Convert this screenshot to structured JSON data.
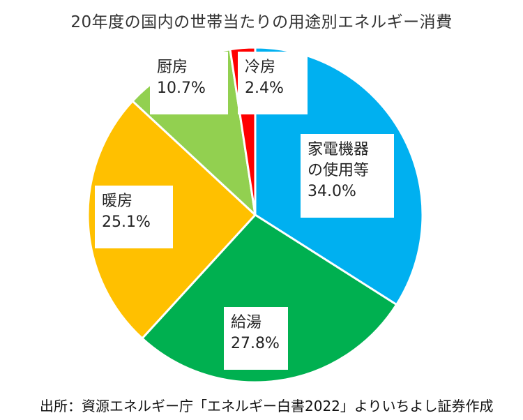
{
  "chart_data": {
    "type": "pie",
    "title": "20年度の国内の世帯当たりの用途別エネルギー消費",
    "start": "12 o'clock",
    "direction": "clockwise",
    "slices": [
      {
        "label_lines": [
          "家電機器",
          "の使用等"
        ],
        "value_text": "34.0%",
        "value": 34.0,
        "color": "#00b0f0"
      },
      {
        "label_lines": [
          "給湯"
        ],
        "value_text": "27.8%",
        "value": 27.8,
        "color": "#00b050"
      },
      {
        "label_lines": [
          "暖房"
        ],
        "value_text": "25.1%",
        "value": 25.1,
        "color": "#ffc000"
      },
      {
        "label_lines": [
          "厨房"
        ],
        "value_text": "10.7%",
        "value": 10.7,
        "color": "#92d050"
      },
      {
        "label_lines": [
          "冷房"
        ],
        "value_text": "2.4%",
        "value": 2.4,
        "color": "#ff0000"
      }
    ]
  },
  "source": "出所：資源エネルギー庁「エネルギー白書2022」よりいちよし証券作成"
}
